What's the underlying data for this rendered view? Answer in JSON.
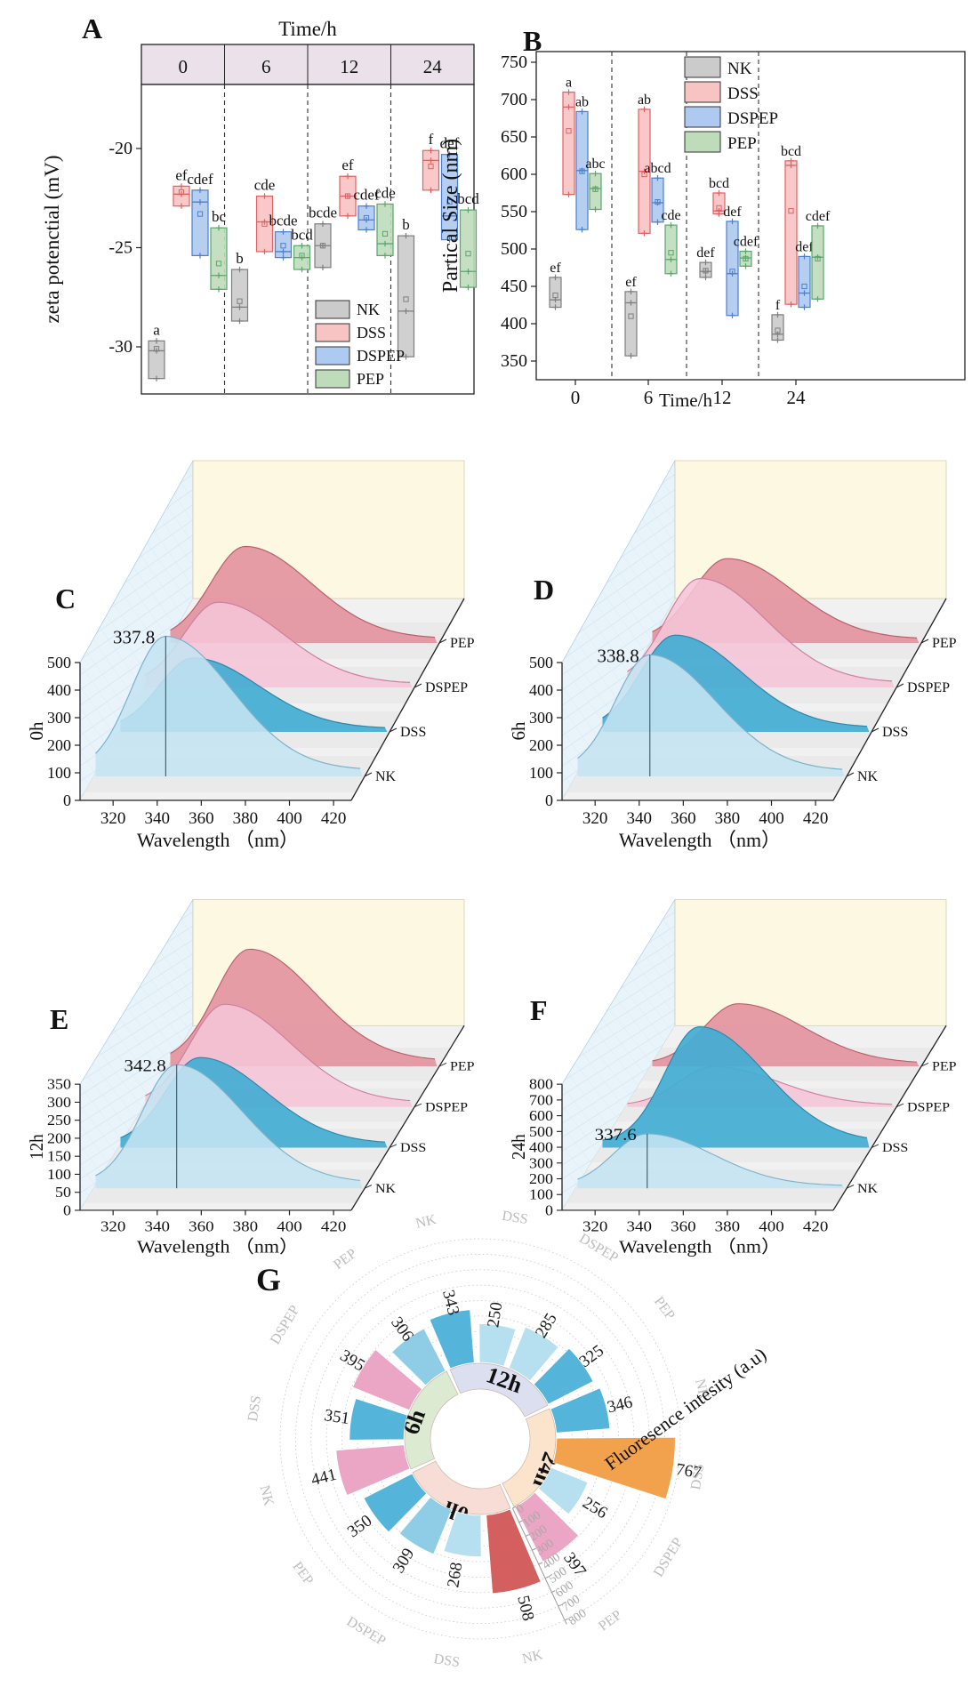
{
  "panels": {
    "A": {
      "label": "A"
    },
    "B": {
      "label": "B"
    },
    "C": {
      "label": "C"
    },
    "D": {
      "label": "D"
    },
    "E": {
      "label": "E"
    },
    "F": {
      "label": "F"
    },
    "G": {
      "label": "G"
    }
  },
  "series_colors": {
    "box": {
      "NK": {
        "fill": "#cbcbcb",
        "stroke": "#7e7e7e"
      },
      "DSS": {
        "fill": "#f8c3c3",
        "stroke": "#e06262"
      },
      "DSPEP": {
        "fill": "#aecaf0",
        "stroke": "#4d7fd0"
      },
      "PEP": {
        "fill": "#bedcba",
        "stroke": "#5ba76b"
      }
    },
    "waterfall": {
      "NK": {
        "fill": "#c5e4f3",
        "stroke": "#7cb1c9",
        "opacity": 0.88
      },
      "DSS": {
        "fill": "#44adD3",
        "stroke": "#2d86a8",
        "opacity": 0.93
      },
      "DSPEP": {
        "fill": "#f5c5d8",
        "stroke": "#cc7fa0",
        "opacity": 0.88
      },
      "PEP": {
        "fill": "#e4949f",
        "stroke": "#b95f6c",
        "opacity": 0.92
      }
    }
  },
  "chart_data": [
    {
      "id": "A",
      "type": "box",
      "header_title": "Time/h",
      "ylabel": "zeta potenctial (mV)",
      "yticks": [
        -20,
        -25,
        -30
      ],
      "ylim": [
        -16.8,
        -32.4
      ],
      "time_groups": [
        "0",
        "6",
        "12",
        "24"
      ],
      "legend": [
        "NK",
        "DSS",
        "DSPEP",
        "PEP"
      ],
      "groups": [
        {
          "time": "0",
          "boxes": [
            {
              "series": "NK",
              "lo": -31.6,
              "hi": -29.7,
              "median": -30.2,
              "mean": -30.1,
              "sig": "a"
            },
            {
              "series": "DSS",
              "lo": -22.9,
              "hi": -21.9,
              "median": -22.3,
              "mean": -22.2,
              "sig": "ef"
            },
            {
              "series": "DSPEP",
              "lo": -25.4,
              "hi": -22.1,
              "median": -22.7,
              "mean": -23.3,
              "sig": "cdef"
            },
            {
              "series": "PEP",
              "lo": -27.1,
              "hi": -24.0,
              "median": -26.4,
              "mean": -25.8,
              "sig": "bc"
            }
          ]
        },
        {
          "time": "6",
          "boxes": [
            {
              "series": "NK",
              "lo": -28.7,
              "hi": -26.1,
              "median": -28.0,
              "mean": -27.7,
              "sig": "b"
            },
            {
              "series": "DSS",
              "lo": -25.2,
              "hi": -22.4,
              "median": -23.7,
              "mean": -23.8,
              "sig": "cde"
            },
            {
              "series": "DSPEP",
              "lo": -25.5,
              "hi": -24.2,
              "median": -25.2,
              "mean": -24.9,
              "sig": "bcde"
            },
            {
              "series": "PEP",
              "lo": -26.1,
              "hi": -24.9,
              "median": -25.5,
              "mean": -25.4,
              "sig": "bcd"
            }
          ]
        },
        {
          "time": "12",
          "boxes": [
            {
              "series": "NK",
              "lo": -26.0,
              "hi": -23.8,
              "median": -24.9,
              "mean": -24.9,
              "sig": "bcde"
            },
            {
              "series": "DSS",
              "lo": -23.4,
              "hi": -21.4,
              "median": -22.4,
              "mean": -22.4,
              "sig": "ef"
            },
            {
              "series": "DSPEP",
              "lo": -24.1,
              "hi": -22.9,
              "median": -23.6,
              "mean": -23.5,
              "sig": "cdef"
            },
            {
              "series": "PEP",
              "lo": -25.4,
              "hi": -22.8,
              "median": -24.8,
              "mean": -24.3,
              "sig": "cde"
            }
          ]
        },
        {
          "time": "24",
          "boxes": [
            {
              "series": "NK",
              "lo": -30.5,
              "hi": -24.4,
              "median": -28.2,
              "mean": -27.6,
              "sig": "b"
            },
            {
              "series": "DSS",
              "lo": -22.1,
              "hi": -20.1,
              "median": -20.6,
              "mean": -20.9,
              "sig": "f"
            },
            {
              "series": "DSPEP",
              "lo": -24.6,
              "hi": -20.3,
              "median": -23.4,
              "mean": -22.7,
              "sig": "def"
            },
            {
              "series": "PEP",
              "lo": -27.0,
              "hi": -23.1,
              "median": -26.2,
              "mean": -25.3,
              "sig": "bcd"
            }
          ]
        }
      ]
    },
    {
      "id": "B",
      "type": "box",
      "xlabel": "Time/h",
      "ylabel": "Partical Size (nm)",
      "yticks": [
        750,
        700,
        650,
        600,
        550,
        500,
        450,
        400,
        350
      ],
      "ylim": [
        764,
        325
      ],
      "time_groups": [
        "0",
        "6",
        "12",
        "24"
      ],
      "legend": [
        "NK",
        "DSS",
        "DSPEP",
        "PEP"
      ],
      "groups": [
        {
          "time": "0",
          "boxes": [
            {
              "series": "NK",
              "lo": 422,
              "hi": 462,
              "median": 432,
              "mean": 438,
              "sig": "ef"
            },
            {
              "series": "DSS",
              "lo": 573,
              "hi": 710,
              "median": 690,
              "mean": 658,
              "sig": "a"
            },
            {
              "series": "DSPEP",
              "lo": 526,
              "hi": 684,
              "median": 605,
              "mean": 604,
              "sig": "ab"
            },
            {
              "series": "PEP",
              "lo": 553,
              "hi": 601,
              "median": 581,
              "mean": 580,
              "sig": "abc"
            }
          ]
        },
        {
          "time": "6",
          "boxes": [
            {
              "series": "NK",
              "lo": 357,
              "hi": 443,
              "median": 428,
              "mean": 410,
              "sig": "ef"
            },
            {
              "series": "DSS",
              "lo": 521,
              "hi": 687,
              "median": 604,
              "mean": 600,
              "sig": "ab"
            },
            {
              "series": "DSPEP",
              "lo": 536,
              "hi": 595,
              "median": 562,
              "mean": 563,
              "sig": "abcd"
            },
            {
              "series": "PEP",
              "lo": 467,
              "hi": 532,
              "median": 486,
              "mean": 495,
              "sig": "cde"
            }
          ]
        },
        {
          "time": "12",
          "boxes": [
            {
              "series": "NK",
              "lo": 462,
              "hi": 482,
              "median": 470,
              "mean": 471,
              "sig": "def"
            },
            {
              "series": "DSS",
              "lo": 547,
              "hi": 575,
              "median": 551,
              "mean": 555,
              "sig": "bcd"
            },
            {
              "series": "DSPEP",
              "lo": 411,
              "hi": 537,
              "median": 467,
              "mean": 470,
              "sig": "def"
            },
            {
              "series": "PEP",
              "lo": 477,
              "hi": 497,
              "median": 488,
              "mean": 487,
              "sig": "cdef"
            }
          ]
        },
        {
          "time": "24",
          "boxes": [
            {
              "series": "NK",
              "lo": 378,
              "hi": 412,
              "median": 386,
              "mean": 391,
              "sig": "f"
            },
            {
              "series": "DSS",
              "lo": 426,
              "hi": 618,
              "median": 612,
              "mean": 551,
              "sig": "bcd"
            },
            {
              "series": "DSPEP",
              "lo": 422,
              "hi": 490,
              "median": 441,
              "mean": 450,
              "sig": "def"
            },
            {
              "series": "PEP",
              "lo": 433,
              "hi": 531,
              "median": 489,
              "mean": 487,
              "sig": "cdef"
            }
          ]
        }
      ]
    },
    {
      "id": "C",
      "type": "waterfall3d",
      "time_label": "0h",
      "peak_annotation": "337.8",
      "ymax": 500,
      "yticks": [
        0,
        100,
        200,
        300,
        400,
        500
      ],
      "xticks": [
        320,
        340,
        360,
        380,
        400,
        420
      ],
      "xlabel": "Wavelength （nm）",
      "series": [
        {
          "name": "NK",
          "peak": 508,
          "peak_x": 337.8
        },
        {
          "name": "DSS",
          "peak": 268,
          "peak_x": 339
        },
        {
          "name": "DSPEP",
          "peak": 309,
          "peak_x": 339
        },
        {
          "name": "PEP",
          "peak": 350,
          "peak_x": 340
        }
      ]
    },
    {
      "id": "D",
      "type": "waterfall3d",
      "time_label": "6h",
      "peak_annotation": "338.8",
      "ymax": 500,
      "yticks": [
        0,
        100,
        200,
        300,
        400,
        500
      ],
      "xticks": [
        320,
        340,
        360,
        380,
        400,
        420
      ],
      "xlabel": "Wavelength （nm）",
      "series": [
        {
          "name": "NK",
          "peak": 441,
          "peak_x": 338.8
        },
        {
          "name": "DSS",
          "peak": 351,
          "peak_x": 339
        },
        {
          "name": "DSPEP",
          "peak": 395,
          "peak_x": 339
        },
        {
          "name": "PEP",
          "peak": 306,
          "peak_x": 340
        }
      ]
    },
    {
      "id": "E",
      "type": "waterfall3d",
      "time_label": "12h",
      "peak_annotation": "342.8",
      "ymax": 350,
      "yticks": [
        0,
        50,
        100,
        150,
        200,
        250,
        300,
        350
      ],
      "xticks": [
        320,
        340,
        360,
        380,
        400,
        420
      ],
      "xlabel": "Wavelength （nm）",
      "series": [
        {
          "name": "NK",
          "peak": 343,
          "peak_x": 342.8
        },
        {
          "name": "DSS",
          "peak": 250,
          "peak_x": 342
        },
        {
          "name": "DSPEP",
          "peak": 285,
          "peak_x": 342
        },
        {
          "name": "PEP",
          "peak": 325,
          "peak_x": 342
        }
      ]
    },
    {
      "id": "F",
      "type": "waterfall3d",
      "time_label": "24h",
      "peak_annotation": "337.6",
      "ymax": 800,
      "yticks": [
        0,
        100,
        200,
        300,
        400,
        500,
        600,
        700,
        800
      ],
      "xticks": [
        320,
        340,
        360,
        380,
        400,
        420
      ],
      "xlabel": "Wavelength （nm）",
      "series": [
        {
          "name": "NK",
          "peak": 346,
          "peak_x": 337.6
        },
        {
          "name": "DSS",
          "peak": 767,
          "peak_x": 350
        },
        {
          "name": "DSPEP",
          "peak": 256,
          "peak_x": 345
        },
        {
          "name": "PEP",
          "peak": 397,
          "peak_x": 345
        }
      ]
    },
    {
      "id": "G",
      "type": "radial-bar",
      "axis_label": "Fluoresence intesity (a.u)",
      "rticks": [
        0,
        100,
        200,
        300,
        400,
        500,
        600,
        700,
        800
      ],
      "rmax": 800,
      "groups": [
        {
          "time": "0h",
          "ring_color": "#f8ddd6",
          "bars": [
            {
              "series": "NK",
              "value": 508
            },
            {
              "series": "DSS",
              "value": 268
            },
            {
              "series": "DSPEP",
              "value": 309
            },
            {
              "series": "PEP",
              "value": 350
            }
          ]
        },
        {
          "time": "6h",
          "ring_color": "#dcead2",
          "bars": [
            {
              "series": "NK",
              "value": 441
            },
            {
              "series": "DSS",
              "value": 351
            },
            {
              "series": "DSPEP",
              "value": 395
            },
            {
              "series": "PEP",
              "value": 306
            }
          ]
        },
        {
          "time": "12h",
          "ring_color": "#dcdff0",
          "bars": [
            {
              "series": "NK",
              "value": 343
            },
            {
              "series": "DSS",
              "value": 250
            },
            {
              "series": "DSPEP",
              "value": 285
            },
            {
              "series": "PEP",
              "value": 325
            }
          ]
        },
        {
          "time": "24h",
          "ring_color": "#fbe4cb",
          "bars": [
            {
              "series": "NK",
              "value": 346
            },
            {
              "series": "DSS",
              "value": 767
            },
            {
              "series": "DSPEP",
              "value": 256
            },
            {
              "series": "PEP",
              "value": 397
            }
          ]
        }
      ],
      "value_colors": [
        {
          "max": 289,
          "color": "#b6dfef"
        },
        {
          "max": 315,
          "color": "#8fcde6"
        },
        {
          "max": 362,
          "color": "#54b4da"
        },
        {
          "max": 460,
          "color": "#eba6c5"
        },
        {
          "max": 600,
          "color": "#d45f5f"
        },
        {
          "max": 900,
          "color": "#f2a24d"
        }
      ]
    }
  ]
}
